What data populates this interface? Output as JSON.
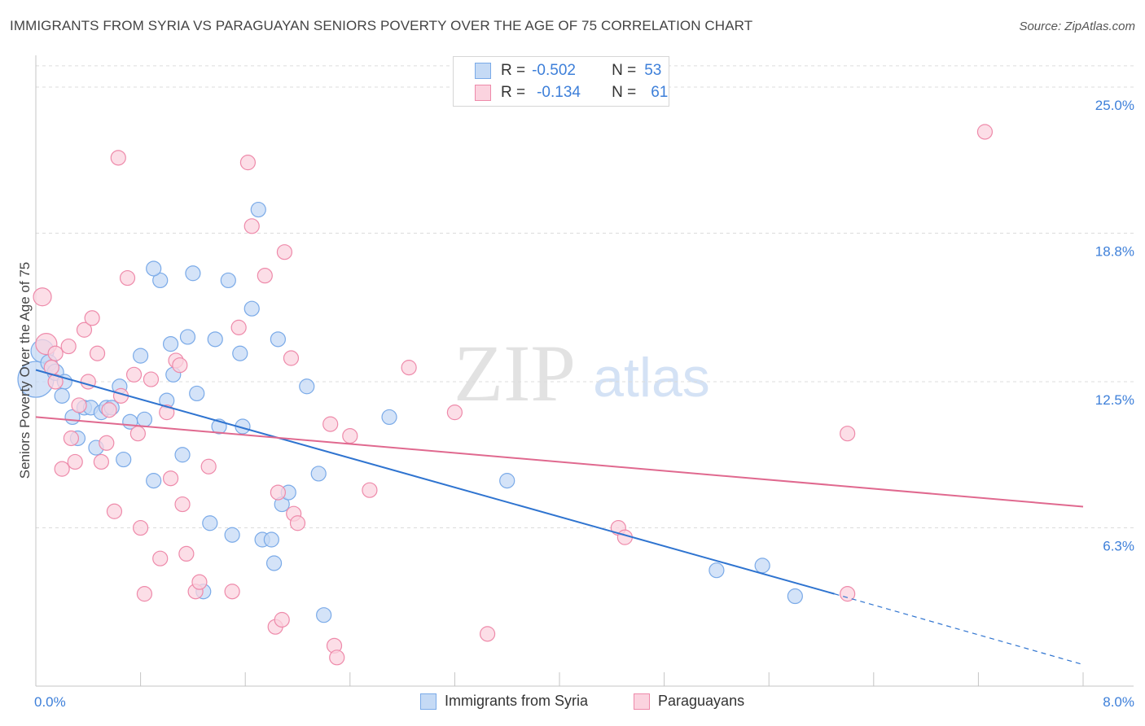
{
  "title": "IMMIGRANTS FROM SYRIA VS PARAGUAYAN SENIORS POVERTY OVER THE AGE OF 75 CORRELATION CHART",
  "source": "Source: ZipAtlas.com",
  "watermark": {
    "zip": "ZIP",
    "atlas": "atlas"
  },
  "legend": {
    "r_label": "R =",
    "n_label": "N =",
    "entries": [
      {
        "r": "-0.502",
        "n": "53",
        "color": "#7aaae8",
        "fill": "#c5daf5"
      },
      {
        "r": "-0.134",
        "n": "61",
        "color": "#ee8aaa",
        "fill": "#fbd3df"
      }
    ]
  },
  "bottom_legend": [
    "Immigrants from Syria",
    "Paraguayans"
  ],
  "chart_data": {
    "type": "scatter",
    "xlabel": "",
    "ylabel": "Seniors Poverty Over the Age of 75",
    "xlim": [
      0,
      8
    ],
    "ylim": [
      0,
      26
    ],
    "x_tick_labels": [
      "0.0%",
      "8.0%"
    ],
    "y_ticks": [
      6.3,
      12.5,
      18.8,
      25.0
    ],
    "y_tick_labels": [
      "6.3%",
      "12.5%",
      "18.8%",
      "25.0%"
    ],
    "grid": true,
    "series": [
      {
        "name": "Immigrants from Syria",
        "color": "#7aaae8",
        "fill": "#c5daf5",
        "line_color": "#2f74d0",
        "trend": {
          "x0": 0.0,
          "y0": 13.0,
          "x1": 6.1,
          "y1": 3.5,
          "dash_to_x": 8.0,
          "dash_to_y": 0.5
        },
        "points": [
          [
            0.0,
            12.6,
            22
          ],
          [
            0.05,
            13.8,
            14
          ],
          [
            0.1,
            13.3,
            10
          ],
          [
            0.15,
            12.9,
            10
          ],
          [
            0.22,
            12.5,
            9
          ],
          [
            0.2,
            11.9,
            9
          ],
          [
            0.28,
            11.0,
            9
          ],
          [
            0.32,
            10.1,
            9
          ],
          [
            0.37,
            11.4,
            9
          ],
          [
            0.42,
            11.4,
            9
          ],
          [
            0.46,
            9.7,
            9
          ],
          [
            0.5,
            11.2,
            9
          ],
          [
            0.54,
            11.4,
            9
          ],
          [
            0.58,
            11.4,
            9
          ],
          [
            0.64,
            12.3,
            9
          ],
          [
            0.67,
            9.2,
            9
          ],
          [
            0.72,
            10.8,
            9
          ],
          [
            0.8,
            13.6,
            9
          ],
          [
            0.83,
            10.9,
            9
          ],
          [
            0.9,
            8.3,
            9
          ],
          [
            0.95,
            16.8,
            9
          ],
          [
            0.9,
            17.3,
            9
          ],
          [
            1.0,
            11.7,
            9
          ],
          [
            1.03,
            14.1,
            9
          ],
          [
            1.05,
            12.8,
            9
          ],
          [
            1.12,
            9.4,
            9
          ],
          [
            1.16,
            14.4,
            9
          ],
          [
            1.2,
            17.1,
            9
          ],
          [
            1.23,
            12.0,
            9
          ],
          [
            1.28,
            3.6,
            9
          ],
          [
            1.33,
            6.5,
            9
          ],
          [
            1.37,
            14.3,
            9
          ],
          [
            1.4,
            10.6,
            9
          ],
          [
            1.47,
            16.8,
            9
          ],
          [
            1.5,
            6.0,
            9
          ],
          [
            1.56,
            13.7,
            9
          ],
          [
            1.58,
            10.6,
            9
          ],
          [
            1.65,
            15.6,
            9
          ],
          [
            1.7,
            19.8,
            9
          ],
          [
            1.73,
            5.8,
            9
          ],
          [
            1.8,
            5.8,
            9
          ],
          [
            1.82,
            4.8,
            9
          ],
          [
            1.85,
            14.3,
            9
          ],
          [
            1.88,
            7.3,
            9
          ],
          [
            1.93,
            7.8,
            9
          ],
          [
            2.07,
            12.3,
            9
          ],
          [
            2.16,
            8.6,
            9
          ],
          [
            2.2,
            2.6,
            9
          ],
          [
            2.7,
            11.0,
            9
          ],
          [
            3.6,
            8.3,
            9
          ],
          [
            5.2,
            4.5,
            9
          ],
          [
            5.55,
            4.7,
            9
          ],
          [
            5.8,
            3.4,
            9
          ]
        ]
      },
      {
        "name": "Paraguayans",
        "color": "#ee8aaa",
        "fill": "#fbd3df",
        "line_color": "#e0698f",
        "trend": {
          "x0": 0.0,
          "y0": 11.0,
          "x1": 8.0,
          "y1": 7.2
        },
        "points": [
          [
            0.05,
            16.1,
            11
          ],
          [
            0.08,
            14.1,
            13
          ],
          [
            0.12,
            13.1,
            9
          ],
          [
            0.15,
            12.5,
            9
          ],
          [
            0.15,
            13.7,
            9
          ],
          [
            0.2,
            8.8,
            9
          ],
          [
            0.25,
            14.0,
            9
          ],
          [
            0.27,
            10.1,
            9
          ],
          [
            0.3,
            9.1,
            9
          ],
          [
            0.33,
            11.5,
            9
          ],
          [
            0.37,
            14.7,
            9
          ],
          [
            0.4,
            12.5,
            9
          ],
          [
            0.43,
            15.2,
            9
          ],
          [
            0.47,
            13.7,
            9
          ],
          [
            0.5,
            9.1,
            9
          ],
          [
            0.54,
            9.9,
            9
          ],
          [
            0.56,
            11.3,
            9
          ],
          [
            0.6,
            7.0,
            9
          ],
          [
            0.63,
            22.0,
            9
          ],
          [
            0.65,
            11.9,
            9
          ],
          [
            0.7,
            16.9,
            9
          ],
          [
            0.75,
            12.8,
            9
          ],
          [
            0.78,
            10.3,
            9
          ],
          [
            0.8,
            6.3,
            9
          ],
          [
            0.83,
            3.5,
            9
          ],
          [
            0.88,
            12.6,
            9
          ],
          [
            0.95,
            5.0,
            9
          ],
          [
            1.0,
            11.2,
            9
          ],
          [
            1.03,
            8.4,
            9
          ],
          [
            1.07,
            13.4,
            9
          ],
          [
            1.1,
            13.2,
            9
          ],
          [
            1.12,
            7.3,
            9
          ],
          [
            1.15,
            5.2,
            9
          ],
          [
            1.22,
            3.6,
            9
          ],
          [
            1.25,
            4.0,
            9
          ],
          [
            1.32,
            8.9,
            9
          ],
          [
            1.5,
            3.6,
            9
          ],
          [
            1.55,
            14.8,
            9
          ],
          [
            1.62,
            21.8,
            9
          ],
          [
            1.65,
            19.1,
            9
          ],
          [
            1.75,
            17.0,
            9
          ],
          [
            1.83,
            2.1,
            9
          ],
          [
            1.85,
            7.8,
            9
          ],
          [
            1.88,
            2.4,
            9
          ],
          [
            1.9,
            18.0,
            9
          ],
          [
            1.95,
            13.5,
            9
          ],
          [
            1.97,
            6.9,
            9
          ],
          [
            2.0,
            6.5,
            9
          ],
          [
            2.25,
            10.7,
            9
          ],
          [
            2.28,
            1.3,
            9
          ],
          [
            2.3,
            0.8,
            9
          ],
          [
            2.4,
            10.2,
            9
          ],
          [
            2.55,
            7.9,
            9
          ],
          [
            2.85,
            13.1,
            9
          ],
          [
            3.2,
            11.2,
            9
          ],
          [
            3.45,
            1.8,
            9
          ],
          [
            4.45,
            6.3,
            9
          ],
          [
            4.5,
            5.9,
            9
          ],
          [
            6.2,
            3.5,
            9
          ],
          [
            6.2,
            10.3,
            9
          ],
          [
            7.25,
            23.1,
            9
          ]
        ]
      }
    ]
  }
}
